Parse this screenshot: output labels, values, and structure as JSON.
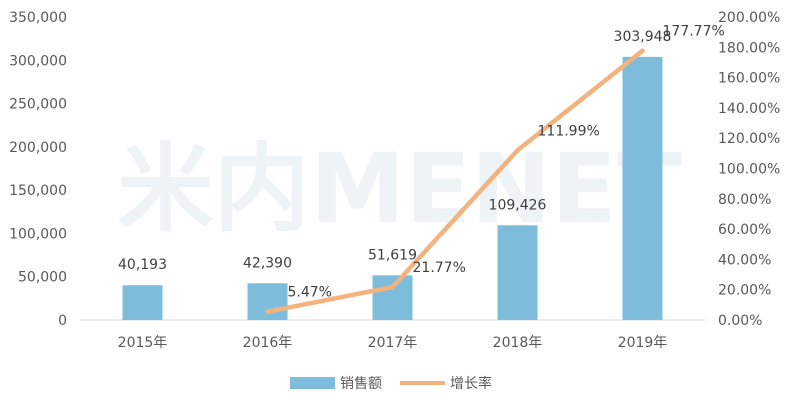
{
  "chart_data": {
    "type": "bar",
    "categories": [
      "2015年",
      "2016年",
      "2017年",
      "2018年",
      "2019年"
    ],
    "series": [
      {
        "name": "销售额",
        "type": "bar",
        "axis": "left",
        "color": "#7dbddb",
        "values": [
          40193,
          42390,
          51619,
          109426,
          303948
        ],
        "labels": [
          "40,193",
          "42,390",
          "51,619",
          "109,426",
          "303,948"
        ]
      },
      {
        "name": "增长率",
        "type": "line",
        "axis": "right",
        "color": "#f4b27e",
        "values": [
          null,
          5.47,
          21.77,
          111.99,
          177.77
        ],
        "labels": [
          "",
          "5.47%",
          "21.77%",
          "111.99%",
          "177.77%"
        ]
      }
    ],
    "y_left": {
      "lim": [
        0,
        350000
      ],
      "ticks": [
        "0",
        "50,000",
        "100,000",
        "150,000",
        "200,000",
        "250,000",
        "300,000",
        "350,000"
      ]
    },
    "y_right": {
      "lim": [
        0,
        200
      ],
      "ticks": [
        "0.00%",
        "20.00%",
        "40.00%",
        "60.00%",
        "80.00%",
        "100.00%",
        "120.00%",
        "140.00%",
        "160.00%",
        "180.00%",
        "200.00%"
      ]
    },
    "grid": false,
    "legend_position": "bottom",
    "watermark": "米内MENET"
  }
}
